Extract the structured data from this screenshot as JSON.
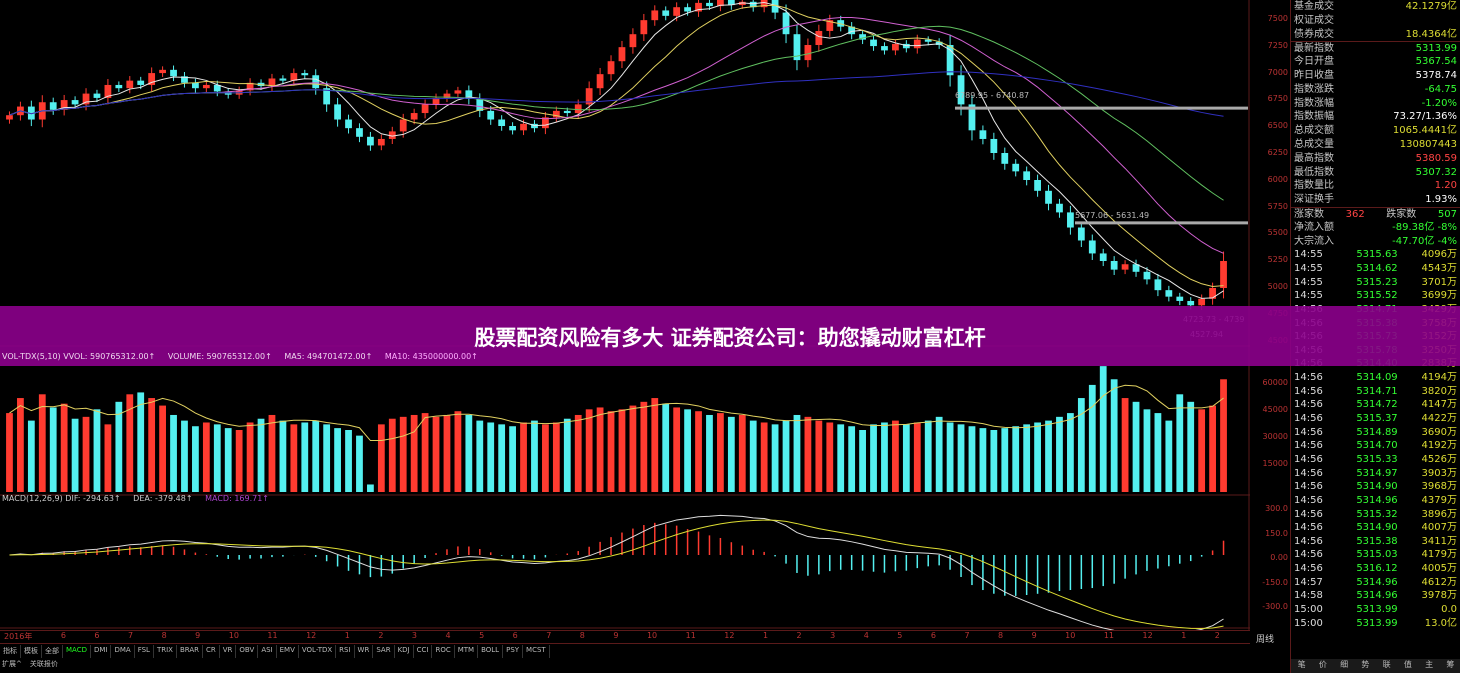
{
  "chart_data": {
    "type": "candlestick",
    "ylim": [
      4450,
      7667
    ],
    "y_ticks": [
      "7500",
      "7250",
      "7000",
      "6750",
      "6500",
      "6250",
      "6000",
      "5750",
      "5500",
      "5250",
      "5000",
      "4750",
      "4500"
    ],
    "close": [
      6600,
      6680,
      6560,
      6720,
      6650,
      6740,
      6700,
      6800,
      6760,
      6880,
      6850,
      6920,
      6880,
      6990,
      7020,
      6960,
      6900,
      6850,
      6880,
      6820,
      6790,
      6830,
      6900,
      6870,
      6940,
      6920,
      6990,
      6970,
      6850,
      6700,
      6560,
      6480,
      6400,
      6320,
      6380,
      6450,
      6560,
      6620,
      6700,
      6760,
      6800,
      6830,
      6750,
      6640,
      6560,
      6500,
      6460,
      6520,
      6480,
      6580,
      6640,
      6620,
      6700,
      6850,
      6980,
      7100,
      7230,
      7350,
      7480,
      7570,
      7520,
      7600,
      7560,
      7640,
      7610,
      7680,
      7620,
      7650,
      7600,
      7670,
      7550,
      7350,
      7110,
      7250,
      7380,
      7480,
      7420,
      7350,
      7300,
      7240,
      7200,
      7260,
      7220,
      7300,
      7280,
      7250,
      6970,
      6700,
      6460,
      6380,
      6250,
      6150,
      6080,
      6000,
      5900,
      5780,
      5700,
      5560,
      5440,
      5320,
      5250,
      5170,
      5220,
      5150,
      5080,
      4980,
      4920,
      4880,
      4840,
      4900,
      5000,
      5250
    ],
    "volume": [
      42000,
      50000,
      38000,
      52000,
      45000,
      47000,
      39000,
      40000,
      44000,
      36000,
      48000,
      52000,
      53000,
      50000,
      46000,
      41000,
      38000,
      35000,
      37000,
      36000,
      34000,
      33000,
      37000,
      39000,
      41000,
      38000,
      36000,
      37000,
      38000,
      36000,
      34000,
      33000,
      30000,
      4000,
      36000,
      39000,
      40000,
      41000,
      42000,
      40000,
      41000,
      43000,
      41000,
      38000,
      37000,
      36000,
      35000,
      37000,
      38000,
      36000,
      37000,
      39000,
      41000,
      44000,
      45000,
      43000,
      44000,
      46000,
      48000,
      50000,
      47000,
      45000,
      44000,
      43000,
      41000,
      42000,
      40000,
      41000,
      38000,
      37000,
      36000,
      38000,
      41000,
      40000,
      38000,
      37000,
      36000,
      35000,
      33000,
      36000,
      37000,
      38000,
      36000,
      37000,
      38000,
      40000,
      37000,
      36000,
      35000,
      34000,
      33000,
      34000,
      35000,
      36000,
      37000,
      38000,
      40000,
      42000,
      50000,
      57000,
      67000,
      60000,
      50000,
      48000,
      44000,
      42000,
      38000,
      52000,
      48000,
      44000,
      46000,
      60000
    ],
    "volume_ylim": [
      0,
      66000
    ],
    "volume_ticks": [
      "60000",
      "45000",
      "30000",
      "15000"
    ],
    "macd_ylim": [
      -330,
      330
    ],
    "macd_ticks": [
      "300.0",
      "150.0",
      "0.00",
      "-150.0",
      "-300.0"
    ],
    "annotations": [
      {
        "text": "6789.95 - 6740.87",
        "price": 6740
      },
      {
        "text": "5677.06 - 5631.49",
        "price": 5631
      },
      {
        "text": "4723.73 - 4739",
        "price": 4723
      },
      {
        "text": "4527.94",
        "price": 4527
      }
    ],
    "x_ticks": [
      "2016年",
      "6",
      "6",
      "7",
      "8",
      "9",
      "10",
      "11",
      "12",
      "1",
      "2",
      "3",
      "4",
      "5",
      "6",
      "7",
      "8",
      "9",
      "10",
      "11",
      "12",
      "1",
      "2",
      "3",
      "4",
      "5",
      "6",
      "7",
      "8",
      "9",
      "10",
      "11",
      "12",
      "1",
      "2"
    ],
    "colors": {
      "up": "#ff3b30",
      "down": "#54f0f0",
      "ma5": "#e8e8e8",
      "ma10": "#e0d060",
      "ma20": "#d060d0",
      "ma30": "#60c060",
      "long": "#3030c0"
    }
  },
  "volume_label": {
    "a": "VOL-TDX(5,10)  VVOL: 590765312.00↑",
    "b": "VOLUME: 590765312.00↑",
    "c": "MA5: 494701472.00↑",
    "d": "MA10: 435000000.00↑"
  },
  "macd_label": {
    "a": "MACD(12,26,9)  DIF: -294.63↑",
    "b": "DEA: -379.48↑",
    "c": "MACD: 169.71↑"
  },
  "banner": "股票配资风险有多大 证券配资公司：助您撬动财富杠杆",
  "tabs": [
    "指标",
    "模板",
    "全部",
    "MACD",
    "DMI",
    "DMA",
    "FSL",
    "TRIX",
    "BRAR",
    "CR",
    "VR",
    "OBV",
    "ASI",
    "EMV",
    "VOL-TDX",
    "RSI",
    "WR",
    "SAR",
    "KDJ",
    "CCI",
    "ROC",
    "MTM",
    "BOLL",
    "PSY",
    "MCST"
  ],
  "ext": [
    "扩展^",
    "关联报价"
  ],
  "period": "周线",
  "panel": {
    "stats": [
      {
        "k": "基金成交",
        "v": "42.1279亿",
        "c": "#dd3"
      },
      {
        "k": "权证成交",
        "v": "",
        "c": "#ddd"
      },
      {
        "k": "债券成交",
        "v": "18.4364亿",
        "c": "#dd3"
      },
      {
        "k": "最新指数",
        "v": "5313.99",
        "c": "#3f3"
      },
      {
        "k": "今日开盘",
        "v": "5367.54",
        "c": "#3f3"
      },
      {
        "k": "昨日收盘",
        "v": "5378.74",
        "c": "#fff"
      },
      {
        "k": "指数涨跌",
        "v": "-64.75",
        "c": "#3f3"
      },
      {
        "k": "指数涨幅",
        "v": "-1.20%",
        "c": "#3f3"
      },
      {
        "k": "指数振幅",
        "v": "73.27/1.36%",
        "c": "#fff"
      },
      {
        "k": "总成交额",
        "v": "1065.4441亿",
        "c": "#dd3"
      },
      {
        "k": "总成交量",
        "v": "130807443",
        "c": "#dd3"
      },
      {
        "k": "最高指数",
        "v": "5380.59",
        "c": "#f44"
      },
      {
        "k": "最低指数",
        "v": "5307.32",
        "c": "#3f3"
      },
      {
        "k": "指数量比",
        "v": "1.20",
        "c": "#f44"
      },
      {
        "k": "深证换手",
        "v": "1.93%",
        "c": "#fff"
      }
    ],
    "updown": {
      "up_label": "涨家数",
      "up": "362",
      "down_label": "跌家数",
      "down": "507"
    },
    "flows": [
      {
        "k": "净流入额",
        "v": "-89.38亿",
        "p": "-8%"
      },
      {
        "k": "大宗流入",
        "v": "-47.70亿",
        "p": "-4%"
      }
    ],
    "ticks": [
      [
        "14:55",
        "5315.63",
        "4096万"
      ],
      [
        "14:55",
        "5314.62",
        "4543万"
      ],
      [
        "14:55",
        "5315.23",
        "3701万"
      ],
      [
        "14:55",
        "5315.52",
        "3699万"
      ],
      [
        "14:56",
        "5314.71",
        "3429万"
      ],
      [
        "14:56",
        "5315.38",
        "3758万"
      ],
      [
        "14:56",
        "5315.73",
        "3152万"
      ],
      [
        "14:56",
        "5315.78",
        "3250万"
      ],
      [
        "14:56",
        "5314.40",
        "2838万"
      ],
      [
        "14:56",
        "5314.09",
        "4194万"
      ],
      [
        "14:56",
        "5314.71",
        "3820万"
      ],
      [
        "14:56",
        "5314.72",
        "4147万"
      ],
      [
        "14:56",
        "5315.37",
        "4422万"
      ],
      [
        "14:56",
        "5314.89",
        "3690万"
      ],
      [
        "14:56",
        "5314.70",
        "4192万"
      ],
      [
        "14:56",
        "5315.33",
        "4526万"
      ],
      [
        "14:56",
        "5314.97",
        "3903万"
      ],
      [
        "14:56",
        "5314.90",
        "3968万"
      ],
      [
        "14:56",
        "5314.96",
        "4379万"
      ],
      [
        "14:56",
        "5315.32",
        "3896万"
      ],
      [
        "14:56",
        "5314.90",
        "4007万"
      ],
      [
        "14:56",
        "5315.38",
        "3411万"
      ],
      [
        "14:56",
        "5315.03",
        "4179万"
      ],
      [
        "14:56",
        "5316.12",
        "4005万"
      ],
      [
        "14:57",
        "5314.96",
        "4612万"
      ],
      [
        "14:58",
        "5314.96",
        "3978万"
      ],
      [
        "15:00",
        "5313.99",
        "0.0"
      ],
      [
        "15:00",
        "5313.99",
        "13.0亿"
      ]
    ],
    "bottom_tabs": [
      "笔",
      "价",
      "细",
      "势",
      "联",
      "值",
      "主",
      "筹"
    ]
  }
}
